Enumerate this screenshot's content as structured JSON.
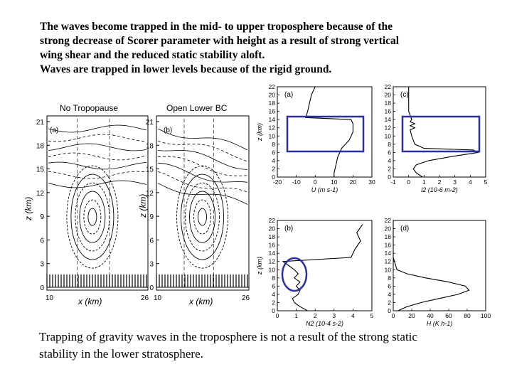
{
  "intro": {
    "lines": [
      "The waves become trapped in the mid- to upper troposphere because of the",
      "strong decrease of Scorer parameter with height as a result of strong vertical",
      "wing shear and the reduced static stability aloft.",
      "Waves are trapped in lower levels because of the rigid ground."
    ]
  },
  "caption": {
    "lines": [
      "Trapping of gravity waves in the troposphere is not a result of the strong static",
      "stability in the lower stratosphere."
    ]
  },
  "left_panels": {
    "panel_a": {
      "title": "No  Tropopause",
      "tag": "(a)",
      "ylabel": "z (km)",
      "xlabel": "x (km)",
      "yticks": [
        "0",
        "3",
        "6",
        "9",
        "12",
        "15",
        "18",
        "21"
      ],
      "xticks": [
        "10",
        "26"
      ]
    },
    "panel_b": {
      "title": "Open  Lower  BC",
      "tag": "(b)",
      "ylabel": "z (km)",
      "xlabel": "x (km)",
      "yticks": [
        "0",
        "3",
        "6",
        "9",
        "12",
        "15",
        "18",
        "21"
      ],
      "xticks": [
        "10",
        "26"
      ]
    }
  },
  "chart_data": [
    {
      "type": "line",
      "tag": "(a)",
      "ylabel": "z (km)",
      "xlabel": "U (m s-1)",
      "xticks": [
        "-20",
        "-10",
        "0",
        "10",
        "20",
        "30"
      ],
      "yticks": [
        "0",
        "2",
        "4",
        "6",
        "8",
        "10",
        "12",
        "14",
        "16",
        "18",
        "20",
        "22"
      ],
      "xlim": [
        -20,
        30
      ],
      "ylim": [
        0,
        22
      ],
      "x": [
        10,
        10,
        10.5,
        11,
        11.5,
        12,
        13,
        14,
        16,
        18,
        20,
        20,
        19,
        -5,
        -4,
        -3,
        -2,
        -1,
        0
      ],
      "y": [
        0,
        1,
        2,
        3,
        4,
        5,
        6,
        7,
        8,
        9,
        11,
        13,
        14,
        14.5,
        16,
        18,
        20,
        21,
        22
      ]
    },
    {
      "type": "line",
      "tag": "(b)",
      "ylabel": "z (km)",
      "xlabel": "N2 (10-4 s-2)",
      "xticks": [
        "0",
        "1",
        "2",
        "3",
        "4",
        "5"
      ],
      "yticks": [
        "0",
        "2",
        "4",
        "6",
        "8",
        "10",
        "12",
        "14",
        "16",
        "18",
        "20",
        "22"
      ],
      "xlim": [
        0,
        5
      ],
      "ylim": [
        0,
        22
      ],
      "x": [
        1.6,
        1.2,
        0.9,
        0.8,
        1.1,
        1.2,
        1.0,
        1.2,
        0.9,
        1.1,
        0.9,
        0.6,
        0.3,
        3.9,
        4.1,
        4.4,
        4.2,
        4.5
      ],
      "y": [
        0,
        1,
        2,
        3,
        4,
        5,
        6,
        7,
        8,
        9,
        10,
        11,
        12,
        13,
        15,
        17,
        19,
        21
      ]
    },
    {
      "type": "line",
      "tag": "(c)",
      "ylabel": "",
      "xlabel": "l2 (10-6 m-2)",
      "xticks": [
        "-1",
        "0",
        "1",
        "2",
        "3",
        "4",
        "5"
      ],
      "yticks": [
        "0",
        "2",
        "4",
        "6",
        "8",
        "10",
        "12",
        "14",
        "16",
        "18",
        "20",
        "22"
      ],
      "xlim": [
        -1,
        5
      ],
      "ylim": [
        0,
        22
      ],
      "x": [
        0.9,
        0.5,
        0.3,
        0.5,
        1.3,
        2.8,
        4.5,
        4.2,
        1.0,
        0.4,
        0.2,
        0.1,
        0.4,
        0.1,
        0.4,
        0.1,
        0.2,
        0.0,
        0.0
      ],
      "y": [
        0,
        1,
        2,
        3,
        4,
        5,
        6,
        6.6,
        7,
        8,
        10,
        11.5,
        12,
        12.5,
        13,
        13.5,
        14,
        16,
        22
      ]
    },
    {
      "type": "line",
      "tag": "(d)",
      "ylabel": "",
      "xlabel": "H (K h-1)",
      "xticks": [
        "0",
        "20",
        "40",
        "60",
        "80",
        "100"
      ],
      "yticks": [
        "0",
        "2",
        "4",
        "6",
        "8",
        "10",
        "12",
        "14",
        "16",
        "18",
        "20",
        "22"
      ],
      "xlim": [
        0,
        100
      ],
      "ylim": [
        0,
        22
      ],
      "x": [
        5,
        15,
        30,
        50,
        70,
        82,
        78,
        60,
        35,
        15,
        4,
        0,
        0
      ],
      "y": [
        0,
        1,
        2,
        3,
        4,
        5,
        6,
        7,
        8,
        9,
        10,
        13,
        22
      ]
    }
  ]
}
